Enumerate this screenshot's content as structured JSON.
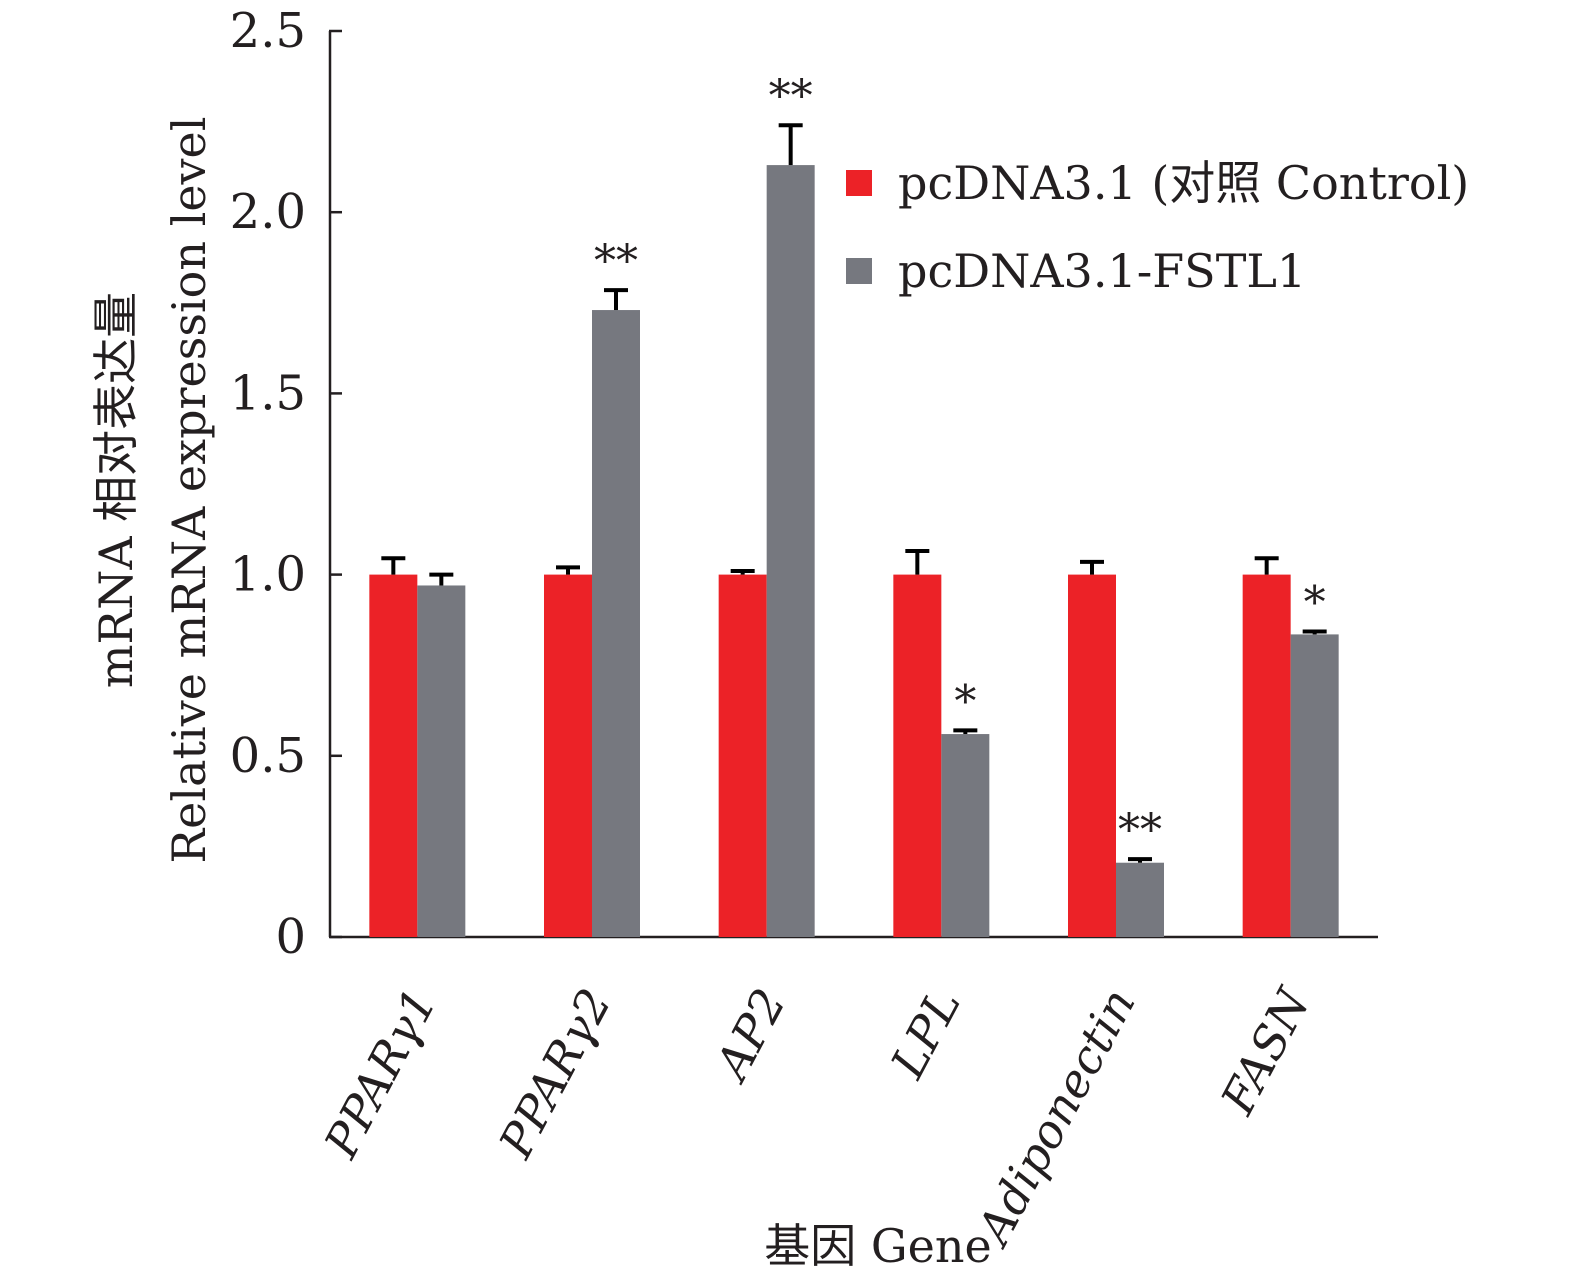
{
  "chart_data": {
    "type": "bar",
    "ylabel_cn": "mRNA 相对表达量",
    "ylabel_en": "Relative mRNA expression level",
    "xlabel": "基因 Gene",
    "ylim": [
      0,
      2.5
    ],
    "yticks": [
      "0",
      "0.5",
      "1.0",
      "1.5",
      "2.0",
      "2.5"
    ],
    "ytick_values": [
      0,
      0.5,
      1.0,
      1.5,
      2.0,
      2.5
    ],
    "categories": [
      "PPARγ1",
      "PPARγ2",
      "AP2",
      "LPL",
      "Adiponectin",
      "FASN"
    ],
    "series": [
      {
        "name": "pcDNA3.1 (对照 Control)",
        "color": "#ec2227",
        "values": [
          1.0,
          1.0,
          1.0,
          1.0,
          1.0,
          1.0
        ],
        "errors": [
          0.045,
          0.02,
          0.01,
          0.065,
          0.035,
          0.045
        ],
        "significance": [
          "",
          "",
          "",
          "",
          "",
          ""
        ]
      },
      {
        "name": "pcDNA3.1-FSTL1",
        "color": "#76787f",
        "values": [
          0.97,
          1.73,
          2.13,
          0.56,
          0.205,
          0.835
        ],
        "errors": [
          0.03,
          0.055,
          0.11,
          0.01,
          0.01,
          0.008
        ],
        "significance": [
          "",
          "**",
          "**",
          "*",
          "**",
          "*"
        ]
      }
    ]
  }
}
